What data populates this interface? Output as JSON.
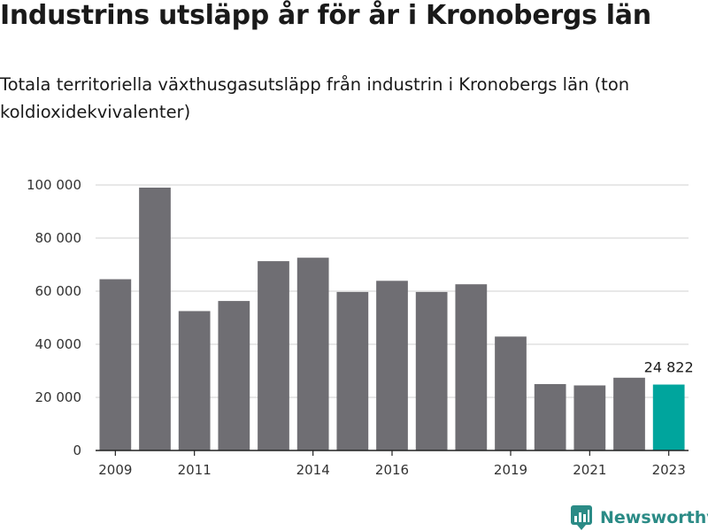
{
  "title": "Industrins utsläpp år för år i Kronobergs län",
  "subtitle": "Totala territoriella växthusgasutsläpp från industrin i Kronobergs län (ton koldioxidekvivalenter)",
  "brand": {
    "name": "Newsworthy",
    "icon": "newsworthy-logo-icon"
  },
  "colors": {
    "bar": "#6f6e73",
    "highlight": "#00a59d",
    "grid": "#d9d9d9",
    "brand": "#2b8b86"
  },
  "chart_data": {
    "type": "bar",
    "categories": [
      "2009",
      "2010",
      "2011",
      "2012",
      "2013",
      "2014",
      "2015",
      "2016",
      "2017",
      "2018",
      "2019",
      "2020",
      "2021",
      "2022",
      "2023"
    ],
    "values": [
      64500,
      99000,
      52500,
      56300,
      71300,
      72600,
      59700,
      63900,
      59700,
      62600,
      42900,
      25000,
      24500,
      27400,
      24822
    ],
    "xtick_labels": [
      "2009",
      "",
      "2011",
      "",
      "",
      "2014",
      "",
      "2016",
      "",
      "",
      "2019",
      "",
      "2021",
      "",
      "2023"
    ],
    "yticks": [
      0,
      20000,
      40000,
      60000,
      80000,
      100000
    ],
    "ytick_labels": [
      "0",
      "20 000",
      "40 000",
      "60 000",
      "80 000",
      "100 000"
    ],
    "ylim": [
      0,
      100000
    ],
    "highlight_index": 14,
    "data_labels": [
      {
        "index": 14,
        "text": "24 822"
      }
    ],
    "grid": true
  }
}
